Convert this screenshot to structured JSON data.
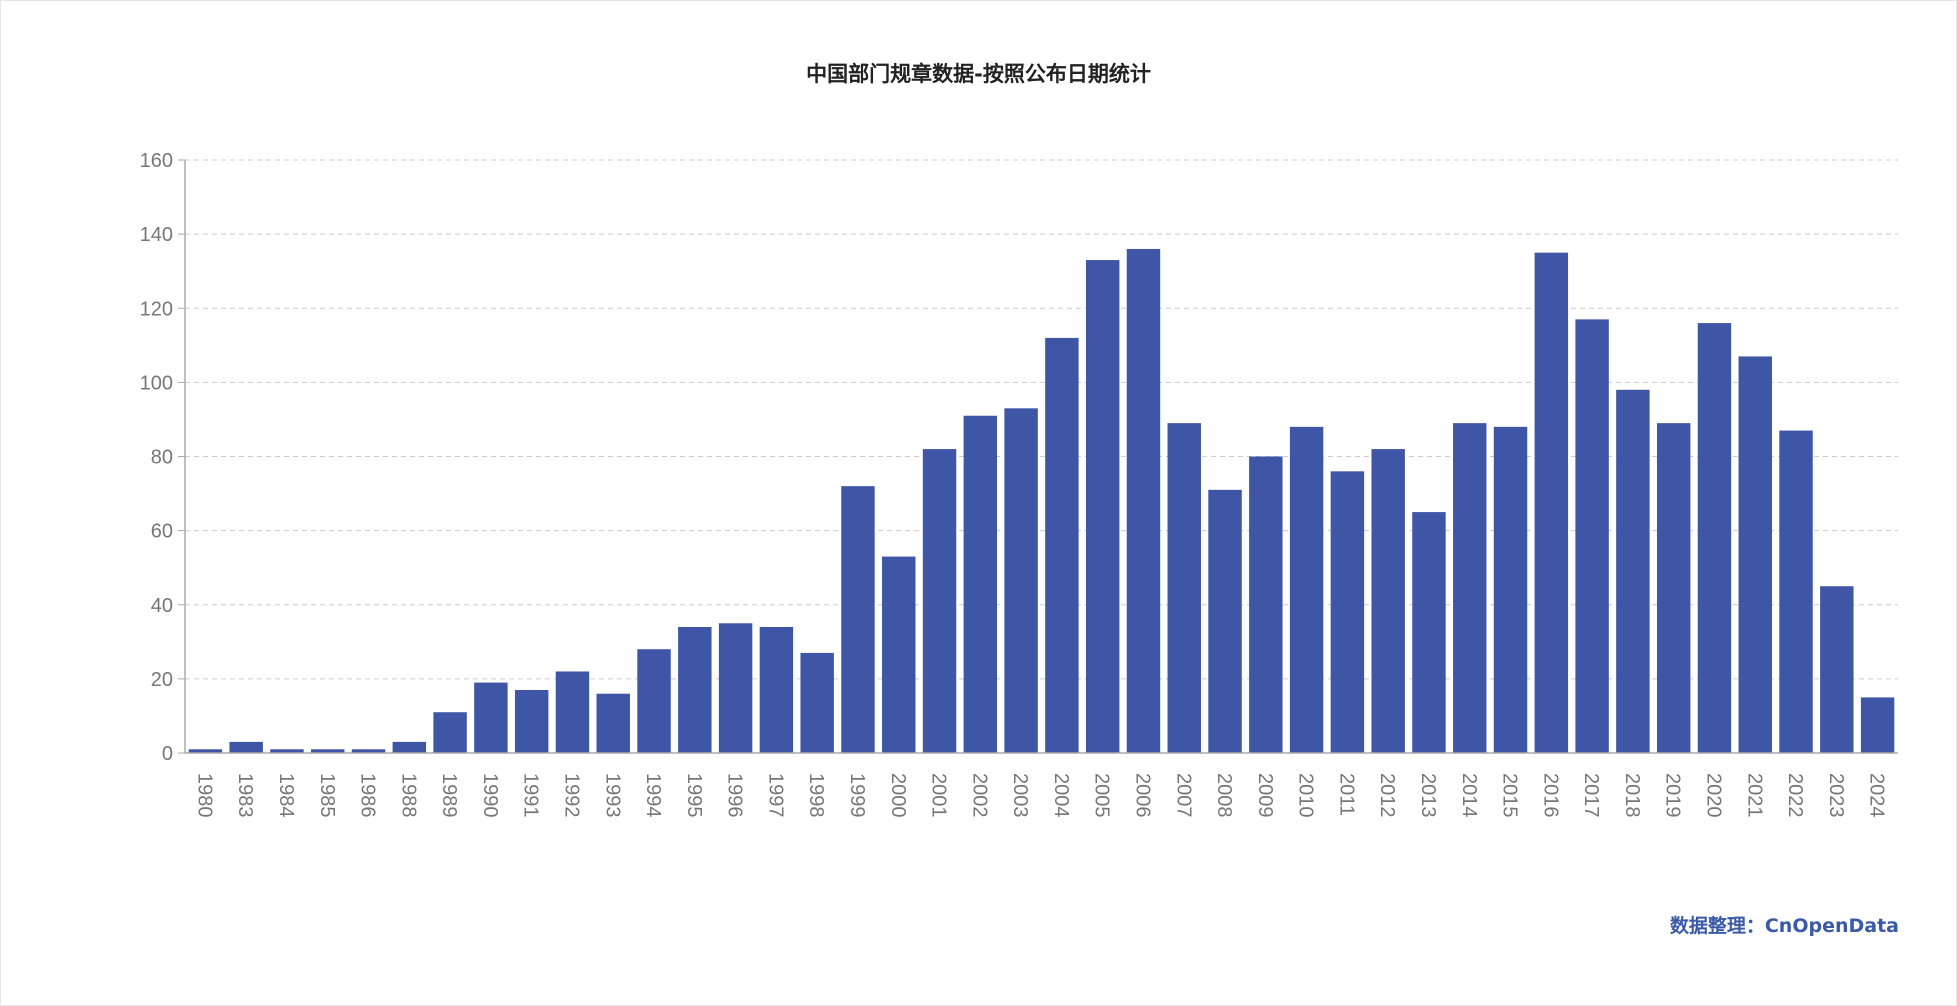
{
  "chart_data": {
    "type": "bar",
    "title": "中国部门规章数据-按照公布日期统计",
    "xlabel": "",
    "ylabel": "",
    "ylim": [
      0,
      160
    ],
    "yticks": [
      0,
      20,
      40,
      60,
      80,
      100,
      120,
      140,
      160
    ],
    "grid": true,
    "legend": "none",
    "categories": [
      "1980",
      "1983",
      "1984",
      "1985",
      "1986",
      "1988",
      "1989",
      "1990",
      "1991",
      "1992",
      "1993",
      "1994",
      "1995",
      "1996",
      "1997",
      "1998",
      "1999",
      "2000",
      "2001",
      "2002",
      "2003",
      "2004",
      "2005",
      "2006",
      "2007",
      "2008",
      "2009",
      "2010",
      "2011",
      "2012",
      "2013",
      "2014",
      "2015",
      "2016",
      "2017",
      "2018",
      "2019",
      "2020",
      "2021",
      "2022",
      "2023",
      "2024"
    ],
    "values": [
      1,
      3,
      1,
      1,
      1,
      3,
      11,
      19,
      17,
      22,
      16,
      28,
      34,
      35,
      34,
      27,
      72,
      53,
      82,
      91,
      93,
      112,
      133,
      136,
      89,
      71,
      80,
      88,
      76,
      82,
      65,
      89,
      88,
      135,
      117,
      98,
      89,
      116,
      107,
      87,
      45,
      15
    ],
    "bar_color": "#3f56a6",
    "grid_color": "#cccccc",
    "axis_color": "#aaaaaa"
  },
  "credit": "数据整理：CnOpenData"
}
